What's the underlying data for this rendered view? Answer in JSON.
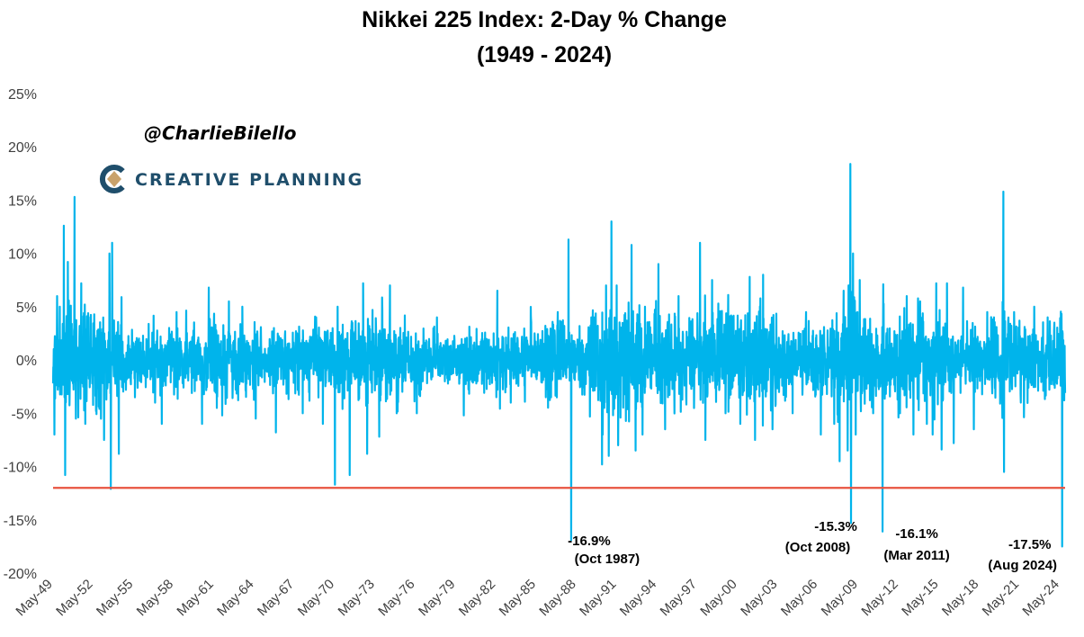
{
  "chart_data": {
    "type": "line",
    "title": "Nikkei 225 Index: 2-Day % Change",
    "subtitle": "(1949 - 2024)",
    "xlabel": "",
    "ylabel": "",
    "x_range": [
      1949.4,
      2024.8
    ],
    "ylim": [
      -20,
      25
    ],
    "y_ticks": [
      25,
      20,
      15,
      10,
      5,
      0,
      -5,
      -10,
      -15,
      -20
    ],
    "y_tick_labels": [
      "25%",
      "20%",
      "15%",
      "10%",
      "5%",
      "0%",
      "-5%",
      "-10%",
      "-15%",
      "-20%"
    ],
    "x_ticks": [
      1949.4,
      1952.4,
      1955.4,
      1958.4,
      1961.4,
      1964.4,
      1967.4,
      1970.4,
      1973.4,
      1976.4,
      1979.4,
      1982.4,
      1985.4,
      1988.4,
      1991.4,
      1994.4,
      1997.4,
      2000.4,
      2003.4,
      2006.4,
      2009.4,
      2012.4,
      2015.4,
      2018.4,
      2021.4,
      2024.4
    ],
    "x_tick_labels": [
      "May-49",
      "May-52",
      "May-55",
      "May-58",
      "May-61",
      "May-64",
      "May-67",
      "May-70",
      "May-73",
      "May-76",
      "May-79",
      "May-82",
      "May-85",
      "May-88",
      "May-91",
      "May-94",
      "May-97",
      "May-00",
      "May-03",
      "May-06",
      "May-09",
      "May-12",
      "May-15",
      "May-18",
      "May-21",
      "May-24"
    ],
    "grid": false,
    "series": [
      {
        "name": "",
        "color": "#00B4EB",
        "volatility": [
          [
            1949.4,
            2.6
          ],
          [
            1950.5,
            2.8
          ],
          [
            1952.0,
            2.4
          ],
          [
            1953.0,
            3.0
          ],
          [
            1954.0,
            2.0
          ],
          [
            1956.0,
            1.4
          ],
          [
            1960.0,
            1.8
          ],
          [
            1962.0,
            2.1
          ],
          [
            1966.0,
            1.5
          ],
          [
            1970.0,
            1.9
          ],
          [
            1972.5,
            2.6
          ],
          [
            1975.0,
            1.8
          ],
          [
            1979.0,
            1.1
          ],
          [
            1981.0,
            1.5
          ],
          [
            1984.0,
            1.6
          ],
          [
            1987.0,
            2.0
          ],
          [
            1988.5,
            1.4
          ],
          [
            1990.0,
            3.2
          ],
          [
            1992.0,
            2.8
          ],
          [
            1995.0,
            2.3
          ],
          [
            1998.0,
            2.4
          ],
          [
            2001.0,
            2.7
          ],
          [
            2003.0,
            2.3
          ],
          [
            2005.0,
            1.6
          ],
          [
            2006.5,
            2.0
          ],
          [
            2008.0,
            2.9
          ],
          [
            2009.3,
            3.3
          ],
          [
            2010.5,
            2.2
          ],
          [
            2013.0,
            2.6
          ],
          [
            2015.5,
            2.4
          ],
          [
            2017.0,
            1.4
          ],
          [
            2019.0,
            1.7
          ],
          [
            2020.3,
            3.0
          ],
          [
            2021.5,
            1.9
          ],
          [
            2023.0,
            1.6
          ],
          [
            2024.8,
            2.4
          ]
        ],
        "extremes": [
          [
            1949.5,
            -7.0
          ],
          [
            1949.7,
            6.0
          ],
          [
            1949.9,
            5.0
          ],
          [
            1950.2,
            12.6
          ],
          [
            1950.3,
            -10.8
          ],
          [
            1950.5,
            9.2
          ],
          [
            1951.0,
            15.3
          ],
          [
            1951.1,
            -5.5
          ],
          [
            1951.5,
            7.2
          ],
          [
            1951.8,
            -6.0
          ],
          [
            1952.6,
            -4.8
          ],
          [
            1953.2,
            -7.5
          ],
          [
            1953.6,
            10.0
          ],
          [
            1953.7,
            -12.1
          ],
          [
            1953.8,
            11.0
          ],
          [
            1954.3,
            -8.8
          ],
          [
            1954.5,
            5.9
          ],
          [
            1955.5,
            -3.5
          ],
          [
            1957.0,
            -4.0
          ],
          [
            1957.5,
            -6.0
          ],
          [
            1958.6,
            4.5
          ],
          [
            1960.5,
            -6.0
          ],
          [
            1961.0,
            6.8
          ],
          [
            1961.6,
            -4.5
          ],
          [
            1962.0,
            -5.2
          ],
          [
            1962.5,
            5.5
          ],
          [
            1963.5,
            5.0
          ],
          [
            1964.5,
            -5.5
          ],
          [
            1966.0,
            -6.8
          ],
          [
            1968.0,
            -5.0
          ],
          [
            1969.0,
            4.0
          ],
          [
            1969.5,
            -6.0
          ],
          [
            1970.4,
            -11.7
          ],
          [
            1970.6,
            5.0
          ],
          [
            1971.5,
            -10.8
          ],
          [
            1972.5,
            7.2
          ],
          [
            1972.8,
            -8.8
          ],
          [
            1973.2,
            4.7
          ],
          [
            1973.7,
            -7.2
          ],
          [
            1974.5,
            7.0
          ],
          [
            1975.0,
            -5.0
          ],
          [
            1976.5,
            -5.0
          ],
          [
            1978.0,
            4.0
          ],
          [
            1980.0,
            -5.2
          ],
          [
            1982.5,
            6.5
          ],
          [
            1983.5,
            -4.0
          ],
          [
            1985.0,
            4.0
          ],
          [
            1986.5,
            -3.5
          ],
          [
            1987.0,
            4.5
          ],
          [
            1987.8,
            11.3
          ],
          [
            1988.0,
            -16.9
          ],
          [
            1989.5,
            4.0
          ],
          [
            1990.3,
            -9.8
          ],
          [
            1990.6,
            7.0
          ],
          [
            1990.8,
            -9.0
          ],
          [
            1991.0,
            13.0
          ],
          [
            1991.5,
            -8.0
          ],
          [
            1992.5,
            10.8
          ],
          [
            1992.8,
            -8.5
          ],
          [
            1993.5,
            5.0
          ],
          [
            1994.5,
            9.0
          ],
          [
            1995.0,
            -6.5
          ],
          [
            1996.0,
            6.0
          ],
          [
            1997.6,
            11.0
          ],
          [
            1998.0,
            -7.5
          ],
          [
            1998.5,
            7.5
          ],
          [
            1999.5,
            -5.0
          ],
          [
            2000.6,
            -6.0
          ],
          [
            2001.3,
            7.8
          ],
          [
            2001.7,
            -7.5
          ],
          [
            2002.3,
            8.0
          ],
          [
            2003.0,
            -6.5
          ],
          [
            2004.5,
            -5.0
          ],
          [
            2005.5,
            4.5
          ],
          [
            2006.6,
            -7.0
          ],
          [
            2007.6,
            -6.0
          ],
          [
            2008.0,
            -9.5
          ],
          [
            2008.3,
            6.5
          ],
          [
            2008.6,
            -8.5
          ],
          [
            2008.8,
            18.4
          ],
          [
            2008.85,
            -15.3
          ],
          [
            2009.0,
            10.0
          ],
          [
            2009.2,
            -7.0
          ],
          [
            2009.5,
            7.5
          ],
          [
            2010.5,
            -5.0
          ],
          [
            2011.2,
            -16.1
          ],
          [
            2011.25,
            7.1
          ],
          [
            2012.5,
            -5.0
          ],
          [
            2013.0,
            6.0
          ],
          [
            2013.5,
            -7.0
          ],
          [
            2014.0,
            5.5
          ],
          [
            2014.5,
            -6.0
          ],
          [
            2015.2,
            7.2
          ],
          [
            2015.6,
            -8.4
          ],
          [
            2016.0,
            7.2
          ],
          [
            2016.5,
            -7.8
          ],
          [
            2017.2,
            6.8
          ],
          [
            2018.0,
            -6.5
          ],
          [
            2019.0,
            4.5
          ],
          [
            2019.5,
            4.0
          ],
          [
            2020.2,
            15.8
          ],
          [
            2020.25,
            -10.5
          ],
          [
            2021.0,
            4.5
          ],
          [
            2021.5,
            -4.0
          ],
          [
            2022.5,
            5.0
          ],
          [
            2023.5,
            4.0
          ],
          [
            2024.0,
            3.5
          ],
          [
            2024.58,
            -17.5
          ],
          [
            2024.6,
            2.7
          ]
        ]
      }
    ],
    "threshold": {
      "value": -12,
      "color": "#E8533F"
    },
    "annotations": [
      {
        "x": 1988.0,
        "value": "-16.9%",
        "date": "(Oct 1987)"
      },
      {
        "x": 2008.85,
        "value": "-15.3%",
        "date": "(Oct 2008)"
      },
      {
        "x": 2011.2,
        "value": "-16.1%",
        "date": "(Mar 2011)"
      },
      {
        "x": 2024.58,
        "value": "-17.5%",
        "date": "(Aug 2024)"
      }
    ]
  },
  "watermark": {
    "handle": "@CharlieBilello",
    "brand": "CREATIVE PLANNING",
    "brand_color": "#1F4E6B",
    "logo_colors": [
      "#1F4E6B",
      "#C9A26B"
    ]
  }
}
